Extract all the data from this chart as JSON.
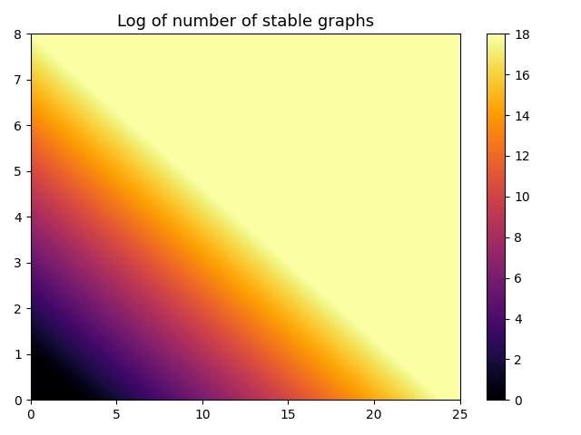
{
  "title": "Log of number of stable graphs",
  "x_min": 0,
  "x_max": 25,
  "y_min": 0,
  "y_max": 8,
  "cbar_min": 0,
  "cbar_max": 18,
  "nx": 500,
  "ny": 300,
  "colormap": "inferno",
  "xticks": [
    0,
    5,
    10,
    15,
    20,
    25
  ],
  "yticks": [
    0,
    1,
    2,
    3,
    4,
    5,
    6,
    7,
    8
  ],
  "cbar_ticks": [
    0,
    2,
    4,
    6,
    8,
    10,
    12,
    14,
    16,
    18
  ],
  "title_fontsize": 13
}
